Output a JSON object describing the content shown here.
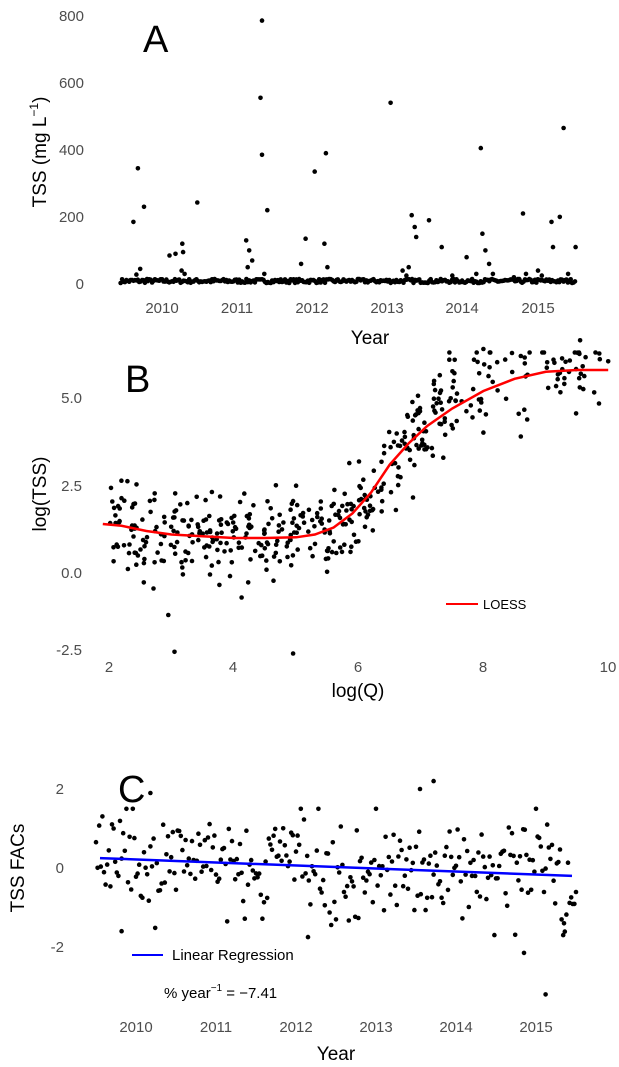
{
  "chart_data": [
    {
      "panel_label": "A",
      "type": "scatter",
      "xlabel": "Year",
      "ylabel": "TSS (mg L−1)",
      "ylabel_main": "TSS (mg L",
      "ylabel_sup": "−1",
      "ylabel_close": ")",
      "xlim": [
        2009.4,
        2015.5
      ],
      "ylim": [
        -20,
        810
      ],
      "x_ticks": [
        2010,
        2011,
        2012,
        2013,
        2014,
        2015
      ],
      "x_tick_labels": [
        "2010",
        "2011",
        "2012",
        "2013",
        "2014",
        "2015"
      ],
      "y_ticks": [
        0,
        200,
        400,
        600,
        800
      ],
      "y_tick_labels": [
        "0",
        "200",
        "400",
        "600",
        "800"
      ],
      "points": [
        [
          2009.62,
          185
        ],
        [
          2009.68,
          345
        ],
        [
          2009.71,
          45
        ],
        [
          2009.76,
          230
        ],
        [
          2009.66,
          28
        ],
        [
          2009.8,
          15
        ],
        [
          2010.1,
          85
        ],
        [
          2010.18,
          90
        ],
        [
          2010.27,
          120
        ],
        [
          2010.28,
          95
        ],
        [
          2010.26,
          40
        ],
        [
          2010.3,
          30
        ],
        [
          2010.47,
          243
        ],
        [
          2010.7,
          15
        ],
        [
          2011.12,
          130
        ],
        [
          2011.16,
          100
        ],
        [
          2011.2,
          70
        ],
        [
          2011.14,
          50
        ],
        [
          2011.33,
          785
        ],
        [
          2011.31,
          555
        ],
        [
          2011.33,
          385
        ],
        [
          2011.4,
          220
        ],
        [
          2011.36,
          30
        ],
        [
          2011.85,
          60
        ],
        [
          2011.91,
          135
        ],
        [
          2012.03,
          335
        ],
        [
          2012.18,
          390
        ],
        [
          2012.16,
          120
        ],
        [
          2012.2,
          50
        ],
        [
          2013.04,
          540
        ],
        [
          2013.2,
          40
        ],
        [
          2013.28,
          50
        ],
        [
          2013.32,
          205
        ],
        [
          2013.36,
          170
        ],
        [
          2013.38,
          140
        ],
        [
          2013.25,
          25
        ],
        [
          2013.55,
          190
        ],
        [
          2013.72,
          110
        ],
        [
          2013.86,
          25
        ],
        [
          2014.05,
          80
        ],
        [
          2014.18,
          30
        ],
        [
          2014.24,
          405
        ],
        [
          2014.26,
          150
        ],
        [
          2014.3,
          100
        ],
        [
          2014.35,
          60
        ],
        [
          2014.4,
          30
        ],
        [
          2014.8,
          210
        ],
        [
          2014.84,
          30
        ],
        [
          2014.68,
          20
        ],
        [
          2015.0,
          40
        ],
        [
          2015.05,
          25
        ],
        [
          2015.18,
          185
        ],
        [
          2015.2,
          110
        ],
        [
          2015.29,
          200
        ],
        [
          2015.34,
          465
        ],
        [
          2015.4,
          30
        ],
        [
          2015.5,
          110
        ]
      ]
    },
    {
      "panel_label": "B",
      "type": "scatter",
      "xlabel": "log(Q)",
      "ylabel": "log(TSS)",
      "xlim": [
        1.7,
        10.15
      ],
      "ylim": [
        -2.75,
        6.95
      ],
      "x_ticks": [
        2,
        4,
        6,
        8,
        10
      ],
      "x_tick_labels": [
        "2",
        "4",
        "6",
        "8",
        "10"
      ],
      "y_ticks": [
        -2.5,
        0,
        2.5,
        5
      ],
      "y_tick_labels": [
        "-2.5",
        "0.0",
        "2.5",
        "5.0"
      ],
      "points_note": "dense cloud of paired log discharge / log TSS observations, approximately 450 points, following the LOESS curve with about ±0.7 scatter",
      "outliers": [
        [
          2.95,
          -1.2
        ],
        [
          3.05,
          -2.25
        ],
        [
          4.95,
          -2.3
        ],
        [
          9.55,
          6.65
        ],
        [
          10.0,
          6.05
        ],
        [
          8.0,
          6.4
        ],
        [
          8.6,
          3.9
        ]
      ],
      "loess_curve": [
        [
          1.9,
          1.4
        ],
        [
          2.2,
          1.35
        ],
        [
          2.6,
          1.2
        ],
        [
          3.0,
          1.1
        ],
        [
          3.5,
          1.05
        ],
        [
          4.0,
          1.0
        ],
        [
          4.5,
          1.0
        ],
        [
          5.0,
          1.02
        ],
        [
          5.3,
          1.1
        ],
        [
          5.6,
          1.3
        ],
        [
          5.9,
          1.7
        ],
        [
          6.2,
          2.3
        ],
        [
          6.5,
          3.1
        ],
        [
          6.8,
          3.7
        ],
        [
          7.1,
          4.2
        ],
        [
          7.5,
          4.7
        ],
        [
          8.0,
          5.2
        ],
        [
          8.5,
          5.55
        ],
        [
          9.0,
          5.75
        ],
        [
          9.5,
          5.8
        ],
        [
          10.0,
          5.8
        ]
      ],
      "legend": {
        "label": "LOESS",
        "color": "#ff0000",
        "position": "bottom-right"
      }
    },
    {
      "panel_label": "C",
      "type": "scatter",
      "xlabel": "Year",
      "ylabel": "TSS FACs",
      "xlim": [
        2009.4,
        2015.5
      ],
      "ylim": [
        -3.4,
        2.55
      ],
      "x_ticks": [
        2010,
        2011,
        2012,
        2013,
        2014,
        2015
      ],
      "x_tick_labels": [
        "2010",
        "2011",
        "2012",
        "2013",
        "2014",
        "2015"
      ],
      "y_ticks": [
        -2,
        0,
        2
      ],
      "y_tick_labels": [
        "-2",
        "0",
        "2"
      ],
      "points_note": "flow-adjusted TSS concentrations for each sample, roughly 300 points spread about zero, most within −1.5 to 1.5",
      "outliers": [
        [
          2010.18,
          1.9
        ],
        [
          2013.72,
          2.2
        ],
        [
          2013.55,
          2.0
        ],
        [
          2014.85,
          -2.15
        ],
        [
          2015.12,
          -3.2
        ],
        [
          2009.82,
          -1.6
        ],
        [
          2012.15,
          -1.75
        ],
        [
          2015.35,
          -1.4
        ]
      ],
      "regression_line": [
        [
          2009.55,
          0.25
        ],
        [
          2015.45,
          -0.2
        ]
      ],
      "legend": {
        "label": "Linear Regression",
        "color": "#0000ff",
        "position": "bottom-left"
      },
      "annotation_main": "% year",
      "annotation_sup": "−1",
      "annotation_value": " = −7.41"
    }
  ]
}
